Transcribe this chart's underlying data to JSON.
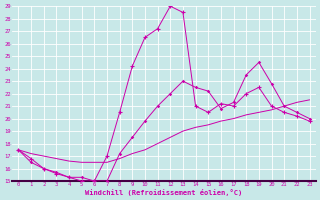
{
  "bg_color": "#c8e8e8",
  "grid_color": "#ffffff",
  "line_color": "#cc00aa",
  "xlim": [
    -0.5,
    23.5
  ],
  "ylim": [
    15,
    29
  ],
  "xticks": [
    0,
    1,
    2,
    3,
    4,
    5,
    6,
    7,
    8,
    9,
    10,
    11,
    12,
    13,
    14,
    15,
    16,
    17,
    18,
    19,
    20,
    21,
    22,
    23
  ],
  "yticks": [
    15,
    16,
    17,
    18,
    19,
    20,
    21,
    22,
    23,
    24,
    25,
    26,
    27,
    28,
    29
  ],
  "xlabel": "Windchill (Refroidissement éolien,°C)",
  "line1_x": [
    0,
    1,
    2,
    3,
    4,
    5,
    6,
    7,
    8,
    9,
    10,
    11,
    12,
    13,
    14,
    15,
    16,
    17,
    18,
    19,
    20,
    21,
    22,
    23
  ],
  "line1_y": [
    17.5,
    16.8,
    16.0,
    15.6,
    15.3,
    15.0,
    15.0,
    17.0,
    20.5,
    24.2,
    26.5,
    27.2,
    29.0,
    28.5,
    21.0,
    20.5,
    21.2,
    21.0,
    22.0,
    22.5,
    21.0,
    20.5,
    20.2,
    19.8
  ],
  "line2_x": [
    0,
    1,
    2,
    3,
    4,
    5,
    6,
    7,
    8,
    9,
    10,
    11,
    12,
    13,
    14,
    15,
    16,
    17,
    18,
    19,
    20,
    21,
    22,
    23
  ],
  "line2_y": [
    17.5,
    16.5,
    16.0,
    15.7,
    15.3,
    15.3,
    15.0,
    15.0,
    17.2,
    18.5,
    19.8,
    21.0,
    22.0,
    23.0,
    22.5,
    22.2,
    20.8,
    21.3,
    23.5,
    24.5,
    22.8,
    21.0,
    20.5,
    20.0
  ],
  "line3_x": [
    0,
    1,
    2,
    3,
    4,
    5,
    6,
    7,
    8,
    9,
    10,
    11,
    12,
    13,
    14,
    15,
    16,
    17,
    18,
    19,
    20,
    21,
    22,
    23
  ],
  "line3_y": [
    17.5,
    17.2,
    17.0,
    16.8,
    16.6,
    16.5,
    16.5,
    16.5,
    16.8,
    17.2,
    17.5,
    18.0,
    18.5,
    19.0,
    19.3,
    19.5,
    19.8,
    20.0,
    20.3,
    20.5,
    20.7,
    21.0,
    21.3,
    21.5
  ]
}
